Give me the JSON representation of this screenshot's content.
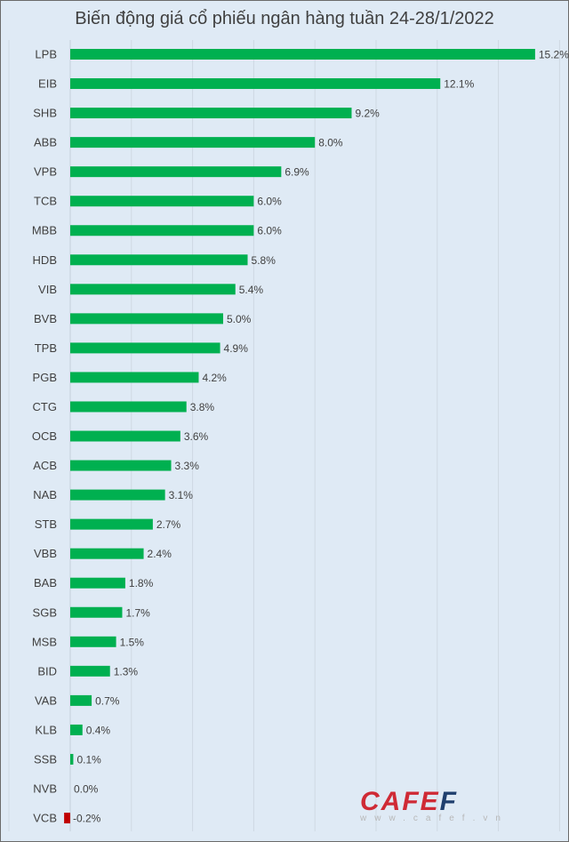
{
  "chart_data": {
    "type": "bar",
    "orientation": "horizontal",
    "title": "Biến động giá cổ phiếu ngân hàng tuần 24-28/1/2022",
    "categories": [
      "LPB",
      "EIB",
      "SHB",
      "ABB",
      "VPB",
      "TCB",
      "MBB",
      "HDB",
      "VIB",
      "BVB",
      "TPB",
      "PGB",
      "CTG",
      "OCB",
      "ACB",
      "NAB",
      "STB",
      "VBB",
      "BAB",
      "SGB",
      "MSB",
      "BID",
      "VAB",
      "KLB",
      "SSB",
      "NVB",
      "VCB"
    ],
    "values": [
      15.2,
      12.1,
      9.2,
      8.0,
      6.9,
      6.0,
      6.0,
      5.8,
      5.4,
      5.0,
      4.9,
      4.2,
      3.8,
      3.6,
      3.3,
      3.1,
      2.7,
      2.4,
      1.8,
      1.7,
      1.5,
      1.3,
      0.7,
      0.4,
      0.1,
      0.0,
      -0.2
    ],
    "labels": [
      "15.2%",
      "12.1%",
      "9.2%",
      "8.0%",
      "6.9%",
      "6.0%",
      "6.0%",
      "5.8%",
      "5.4%",
      "5.0%",
      "4.9%",
      "4.2%",
      "3.8%",
      "3.6%",
      "3.3%",
      "3.1%",
      "2.7%",
      "2.4%",
      "1.8%",
      "1.7%",
      "1.5%",
      "1.3%",
      "0.7%",
      "0.4%",
      "0.1%",
      "0.0%",
      "-0.2%"
    ],
    "xlim": [
      0,
      16
    ],
    "grid_step": 2,
    "grid": true,
    "colors": {
      "positive": "#00b050",
      "negative": "#c00000"
    }
  },
  "watermark": {
    "brand": "CAFEF",
    "url": "w w w . c a f e f . v n"
  }
}
